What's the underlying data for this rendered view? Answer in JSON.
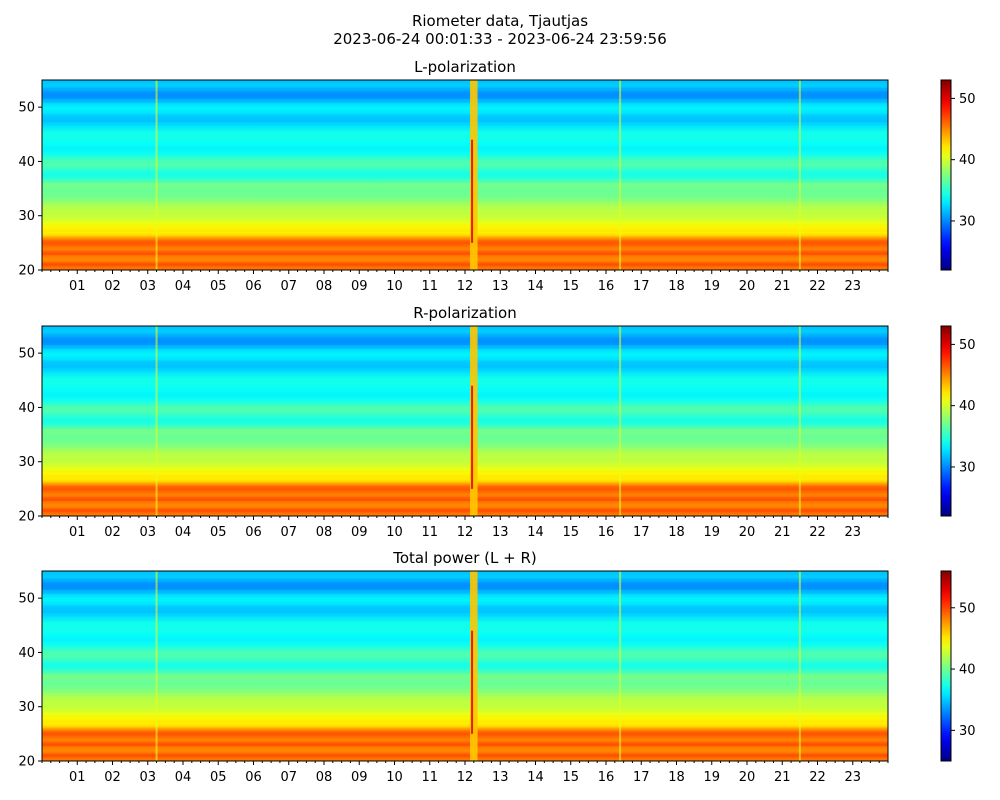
{
  "figure": {
    "title_line1": "Riometer data, Tjautjas",
    "title_line2": "2023-06-24 00:01:33 - 2023-06-24 23:59:56"
  },
  "colormap": "jet",
  "chart_data": [
    {
      "type": "heatmap",
      "title": "L-polarization",
      "xlabel": "",
      "ylabel": "",
      "xlim_hours": [
        0,
        24
      ],
      "xticks": [
        "01",
        "02",
        "03",
        "04",
        "05",
        "06",
        "07",
        "08",
        "09",
        "10",
        "11",
        "12",
        "13",
        "14",
        "15",
        "16",
        "17",
        "18",
        "19",
        "20",
        "21",
        "22",
        "23"
      ],
      "ylim": [
        20,
        55
      ],
      "yticks": [
        20,
        30,
        40,
        50
      ],
      "colorbar": {
        "ticks": [
          30,
          40,
          50
        ],
        "range": [
          22,
          53
        ]
      },
      "vertical_features_hours": [
        3.25,
        12.2,
        12.3,
        16.4,
        21.5
      ],
      "band_peak_value": 49
    },
    {
      "type": "heatmap",
      "title": "R-polarization",
      "xlabel": "",
      "ylabel": "",
      "xlim_hours": [
        0,
        24
      ],
      "xticks": [
        "01",
        "02",
        "03",
        "04",
        "05",
        "06",
        "07",
        "08",
        "09",
        "10",
        "11",
        "12",
        "13",
        "14",
        "15",
        "16",
        "17",
        "18",
        "19",
        "20",
        "21",
        "22",
        "23"
      ],
      "ylim": [
        20,
        55
      ],
      "yticks": [
        20,
        30,
        40,
        50
      ],
      "colorbar": {
        "ticks": [
          30,
          40,
          50
        ],
        "range": [
          22,
          53
        ]
      },
      "vertical_features_hours": [
        3.25,
        12.2,
        12.3,
        16.4,
        21.5
      ],
      "band_peak_value": 49
    },
    {
      "type": "heatmap",
      "title": "Total power (L + R)",
      "xlabel": "",
      "ylabel": "",
      "xlim_hours": [
        0,
        24
      ],
      "xticks": [
        "01",
        "02",
        "03",
        "04",
        "05",
        "06",
        "07",
        "08",
        "09",
        "10",
        "11",
        "12",
        "13",
        "14",
        "15",
        "16",
        "17",
        "18",
        "19",
        "20",
        "21",
        "22",
        "23"
      ],
      "ylim": [
        20,
        55
      ],
      "yticks": [
        20,
        30,
        40,
        50
      ],
      "colorbar": {
        "ticks": [
          30,
          40,
          50
        ],
        "range": [
          25,
          56
        ]
      },
      "vertical_features_hours": [
        3.25,
        12.2,
        12.3,
        16.4,
        21.5
      ],
      "band_peak_value": 52
    }
  ]
}
